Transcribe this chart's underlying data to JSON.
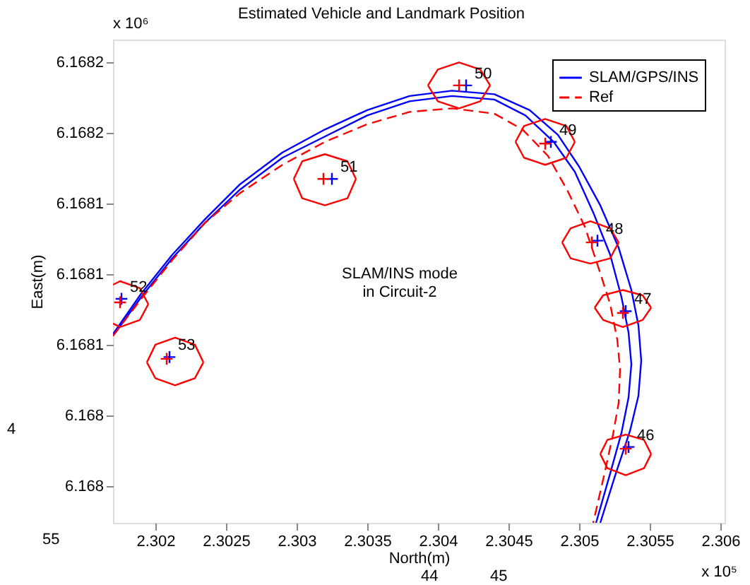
{
  "chart_data": {
    "type": "line",
    "title": "Estimated Vehicle and Landmark Position",
    "xlabel": "North(m)",
    "ylabel": "East(m)",
    "xlim": [
      2.3017,
      2.30603
    ],
    "ylim": [
      6.167959,
      6.168233
    ],
    "xticks": [
      2.302,
      2.3025,
      2.303,
      2.3035,
      2.304,
      2.3045,
      2.305,
      2.3055,
      2.306
    ],
    "yticks": [
      {
        "value": 6.16822,
        "label": "6.1682"
      },
      {
        "value": 6.16818,
        "label": "6.1682"
      },
      {
        "value": 6.16814,
        "label": "6.1681"
      },
      {
        "value": 6.1681,
        "label": "6.1681"
      },
      {
        "value": 6.16806,
        "label": "6.1681"
      },
      {
        "value": 6.16802,
        "label": "6.168"
      },
      {
        "value": 6.16798,
        "label": "6.168"
      }
    ],
    "grid": false,
    "legend": "top right",
    "series": [
      {
        "name": "SLAM/GPS/INS",
        "color": "#0000ff",
        "line_style": "solid",
        "x": [
          2.3017,
          2.3019,
          2.30212,
          2.30235,
          2.3026,
          2.3029,
          2.3032,
          2.3035,
          2.3038,
          2.3041,
          2.3044,
          2.30465,
          2.30485,
          2.305,
          2.30515,
          2.30528,
          2.30537,
          2.30542,
          2.30544,
          2.30542,
          2.30536,
          2.30526,
          2.30515
        ],
        "values": [
          6.168066,
          6.168089,
          6.168111,
          6.168131,
          6.168151,
          6.168169,
          6.168182,
          6.168193,
          6.168201,
          6.168204,
          6.168202,
          6.168193,
          6.168179,
          6.168161,
          6.168139,
          6.168115,
          6.168091,
          6.168071,
          6.168051,
          6.168031,
          6.168011,
          6.167987,
          6.167959
        ]
      },
      {
        "color": "#0000ff",
        "line_style": "solid",
        "x": [
          2.3017,
          2.3019,
          2.30212,
          2.30235,
          2.3026,
          2.3029,
          2.3032,
          2.3035,
          2.3038,
          2.3041,
          2.3044,
          2.30462,
          2.30482,
          2.30497,
          2.3051,
          2.30522,
          2.3053,
          2.30535,
          2.30537,
          2.30535,
          2.3053,
          2.30522,
          2.30512
        ],
        "values": [
          6.168065,
          6.168087,
          6.168109,
          6.168129,
          6.168148,
          6.168166,
          6.168178,
          6.16819,
          6.168198,
          6.168201,
          6.168199,
          6.16819,
          6.168175,
          6.168158,
          6.168135,
          6.168111,
          6.168087,
          6.168067,
          6.168049,
          6.16803,
          6.16801,
          6.167987,
          6.167959
        ]
      },
      {
        "name": "Ref",
        "color": "#ff0000",
        "line_style": "dashed",
        "x": [
          2.3017,
          2.3019,
          2.30212,
          2.30235,
          2.3026,
          2.3029,
          2.3032,
          2.3035,
          2.3038,
          2.3041,
          2.3044,
          2.3046,
          2.30478,
          2.30492,
          2.30504,
          2.30514,
          2.30522,
          2.30527,
          2.30529,
          2.30528,
          2.30524,
          2.30518,
          2.3051
        ],
        "values": [
          6.168065,
          6.168086,
          6.168108,
          6.168129,
          6.168146,
          6.168162,
          6.168175,
          6.168185,
          6.168192,
          6.168194,
          6.168191,
          6.168182,
          6.168167,
          6.168147,
          6.168127,
          6.168103,
          6.168083,
          6.168063,
          6.168046,
          6.168027,
          6.168009,
          6.167987,
          6.167959
        ]
      },
      {
        "color": "#ff0000",
        "line_style": "solid",
        "x": [
          2.30393,
          2.304,
          2.30415,
          2.3043,
          2.30437
        ],
        "values": [
          6.168207,
          6.168216,
          6.16822,
          6.168216,
          6.168207
        ]
      },
      {
        "color": "#ff0000",
        "line_style": "solid",
        "x": [
          2.30393,
          2.304,
          2.30415,
          2.3043,
          2.30437
        ],
        "values": [
          6.168207,
          6.168198,
          6.168194,
          6.168198,
          6.168207
        ]
      },
      {
        "color": "#ff0000",
        "line_style": "solid",
        "x": [
          2.30455,
          2.30461,
          2.30476,
          2.30491,
          2.30497
        ],
        "values": [
          6.168175,
          6.168184,
          6.168188,
          6.168184,
          6.168175
        ]
      },
      {
        "color": "#ff0000",
        "line_style": "solid",
        "x": [
          2.30455,
          2.30461,
          2.30476,
          2.30491,
          2.30497
        ],
        "values": [
          6.168175,
          6.168166,
          6.168162,
          6.168166,
          6.168175
        ]
      },
      {
        "color": "#ff0000",
        "line_style": "solid",
        "x": [
          2.30488,
          2.30494,
          2.30508,
          2.30522,
          2.30528
        ],
        "values": [
          6.168118,
          6.168126,
          6.16813,
          6.168126,
          6.168118
        ]
      },
      {
        "color": "#ff0000",
        "line_style": "solid",
        "x": [
          2.30488,
          2.30494,
          2.30508,
          2.30522,
          2.30528
        ],
        "values": [
          6.168118,
          6.168109,
          6.168106,
          6.168109,
          6.168118
        ]
      },
      {
        "color": "#ff0000",
        "line_style": "solid",
        "x": [
          2.30511,
          2.30517,
          2.30531,
          2.30545,
          2.30551
        ],
        "values": [
          6.168081,
          6.168088,
          6.168091,
          6.168088,
          6.168081
        ]
      },
      {
        "color": "#ff0000",
        "line_style": "solid",
        "x": [
          2.30511,
          2.30517,
          2.30531,
          2.30545,
          2.30551
        ],
        "values": [
          6.168081,
          6.168074,
          6.16807,
          6.168074,
          6.168081
        ]
      },
      {
        "color": "#ff0000",
        "line_style": "solid",
        "x": [
          2.30515,
          2.3052,
          2.30533,
          2.30546,
          2.30551
        ],
        "values": [
          6.167998,
          6.168006,
          6.168009,
          6.168006,
          6.167998
        ]
      },
      {
        "color": "#ff0000",
        "line_style": "solid",
        "x": [
          2.30515,
          2.3052,
          2.30533,
          2.30546,
          2.30551
        ],
        "values": [
          6.167998,
          6.16799,
          6.167986,
          6.16799,
          6.167998
        ]
      },
      {
        "color": "#ff0000",
        "line_style": "solid",
        "x": [
          2.30298,
          2.30304,
          2.3032,
          2.30336,
          2.30342
        ],
        "values": [
          6.168154,
          6.168164,
          6.168168,
          6.168164,
          6.168154
        ]
      },
      {
        "color": "#ff0000",
        "line_style": "solid",
        "x": [
          2.30298,
          2.30304,
          2.3032,
          2.30336,
          2.30342
        ],
        "values": [
          6.168154,
          6.168143,
          6.168139,
          6.168143,
          6.168154
        ]
      },
      {
        "color": "#ff0000",
        "line_style": "solid",
        "x": [
          2.3017,
          2.30175,
          2.30189,
          2.30195
        ],
        "values": [
          6.168094,
          6.168096,
          6.168092,
          6.168083
        ]
      },
      {
        "color": "#ff0000",
        "line_style": "solid",
        "x": [
          2.3017,
          2.30175,
          2.30189,
          2.30195
        ],
        "values": [
          6.168072,
          6.16807,
          6.168074,
          6.168083
        ]
      },
      {
        "color": "#ff0000",
        "line_style": "solid",
        "x": [
          2.30194,
          2.302,
          2.30214,
          2.30228,
          2.30234
        ],
        "values": [
          6.16805,
          6.16806,
          6.168064,
          6.16806,
          6.16805
        ]
      },
      {
        "color": "#ff0000",
        "line_style": "solid",
        "x": [
          2.30194,
          2.302,
          2.30214,
          2.30228,
          2.30234
        ],
        "values": [
          6.16805,
          6.168041,
          6.168037,
          6.168041,
          6.16805
        ]
      },
      {
        "type": "scatter",
        "color": "#ff0000",
        "marker": "cross",
        "x": [
          2.30415,
          2.30476,
          2.30509,
          2.30531,
          2.30533,
          2.30319,
          2.30175,
          2.30208
        ],
        "values": [
          6.168207,
          6.168174,
          6.168118,
          6.168078,
          6.168001,
          6.168154,
          6.168084,
          6.168052
        ]
      },
      {
        "type": "scatter",
        "color": "#0000ff",
        "marker": "cross",
        "x": [
          2.3042,
          2.3048,
          2.30513,
          2.30533,
          2.30535,
          2.30325,
          2.30176,
          2.3021
        ],
        "values": [
          6.168207,
          6.168175,
          6.168119,
          6.168079,
          6.168002,
          6.168154,
          6.168086,
          6.168053
        ]
      }
    ],
    "annotations": [
      {
        "text": "50",
        "x": 2.3042,
        "y": 6.168207
      },
      {
        "text": "49",
        "x": 2.3048,
        "y": 6.168175
      },
      {
        "text": "48",
        "x": 2.30513,
        "y": 6.168119
      },
      {
        "text": "47",
        "x": 2.30533,
        "y": 6.168079
      },
      {
        "text": "46",
        "x": 2.30535,
        "y": 6.168002
      },
      {
        "text": "51",
        "x": 2.30325,
        "y": 6.168154
      },
      {
        "text": "52",
        "x": 2.30176,
        "y": 6.168086
      },
      {
        "text": "53",
        "x": 2.3021,
        "y": 6.168053
      },
      "x 10⁶",
      "x 10⁵",
      "SLAM/INS mode\nin Circuit-2",
      "55",
      "4",
      "44",
      "45"
    ]
  }
}
